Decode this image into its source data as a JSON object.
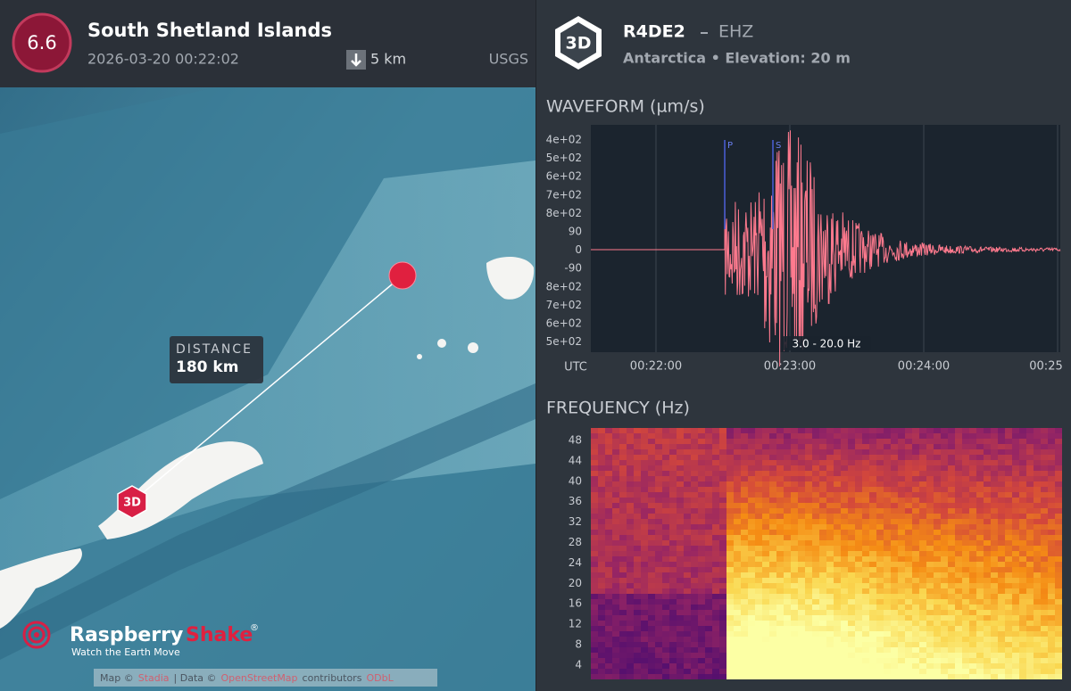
{
  "event": {
    "magnitude": "6.6",
    "place": "South Shetland Islands",
    "datetime": "2026-03-20 00:22:02",
    "depth": "5 km",
    "source": "USGS"
  },
  "station": {
    "badge": "3D",
    "code": "R4DE2",
    "channel": "EHZ",
    "subtitle": "Antarctica • Elevation: 20 m"
  },
  "map": {
    "distance_title": "DISTANCE",
    "distance": "180 km",
    "station_badge": "3D",
    "brand_a": "Raspberry",
    "brand_b": "Shake",
    "brand_mark": "®",
    "tagline": "Watch the Earth Move",
    "attribution": [
      "Map ©",
      "Stadia",
      "| Data ©",
      "OpenStreetMap",
      "contributors",
      "ODbL"
    ]
  },
  "waveform": {
    "title": "WAVEFORM (µm/s)",
    "y_labels": [
      "4e+02",
      "5e+02",
      "6e+02",
      "7e+02",
      "8e+02",
      "90",
      "0",
      "-90",
      "8e+02",
      "7e+02",
      "6e+02",
      "5e+02"
    ],
    "x_unit": "UTC",
    "x_labels": [
      "00:22:00",
      "00:23:00",
      "00:24:00",
      "00:25"
    ],
    "filter": "3.0 - 20.0 Hz",
    "p_pick": "P",
    "s_pick": "S"
  },
  "frequency": {
    "title": "FREQUENCY (Hz)",
    "y_labels": [
      "48",
      "44",
      "40",
      "36",
      "32",
      "28",
      "24",
      "20",
      "16",
      "12",
      "8",
      "4"
    ]
  }
}
